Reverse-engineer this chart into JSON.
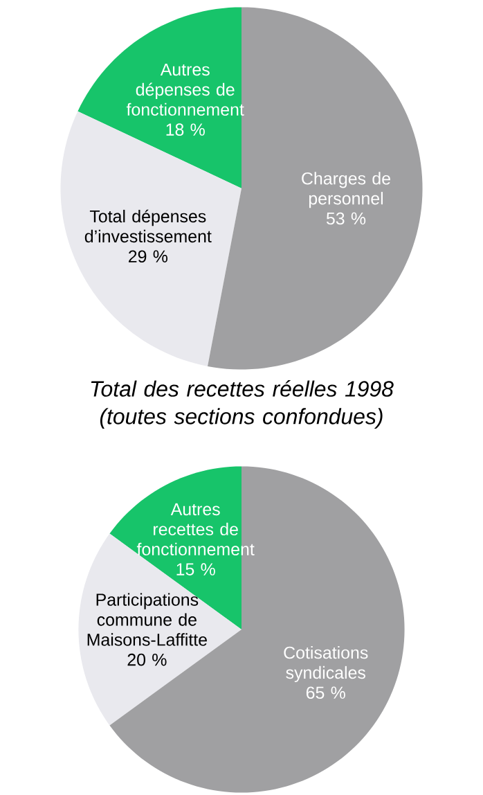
{
  "chart_data": [
    {
      "type": "pie",
      "categories": [
        "Charges de personnel",
        "Total dépenses d’investissement",
        "Autres dépenses de fonctionnement"
      ],
      "values": [
        53,
        29,
        18
      ],
      "value_labels": [
        "53 %",
        "29 %",
        "18 %"
      ],
      "colors": [
        "#a0a0a2",
        "#e9e9ee",
        "#17c46a"
      ]
    },
    {
      "type": "pie",
      "title": "Total des recettes réelles 1998 (toutes sections confondues)",
      "categories": [
        "Cotisations syndicales",
        "Participations commune de Maisons-Laffitte",
        "Autres recettes de fonctionnement"
      ],
      "values": [
        65,
        20,
        15
      ],
      "value_labels": [
        "65 %",
        "20 %",
        "15 %"
      ],
      "colors": [
        "#a0a0a2",
        "#e9e9ee",
        "#17c46a"
      ]
    }
  ]
}
